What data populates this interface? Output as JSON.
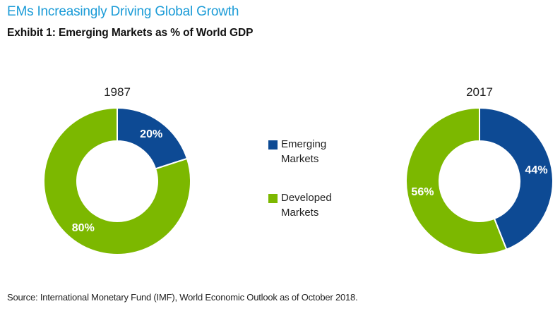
{
  "header": {
    "headline": "EMs Increasingly Driving Global Growth",
    "exhibit_title": "Exhibit 1: Emerging Markets as % of World GDP"
  },
  "colors": {
    "headline": "#1a9bd7",
    "emerging": "#0d4a94",
    "developed": "#7cb800"
  },
  "legend": {
    "items": [
      {
        "label_line1": "Emerging",
        "label_line2": "Markets",
        "color": "#0d4a94"
      },
      {
        "label_line1": "Developed",
        "label_line2": "Markets",
        "color": "#7cb800"
      }
    ]
  },
  "chart_data": [
    {
      "type": "pie",
      "title": "1987",
      "hole": "donut",
      "slices": [
        {
          "name": "Emerging Markets",
          "value": 20,
          "label": "20%",
          "color": "#0d4a94"
        },
        {
          "name": "Developed Markets",
          "value": 80,
          "label": "80%",
          "color": "#7cb800"
        }
      ]
    },
    {
      "type": "pie",
      "title": "2017",
      "hole": "donut",
      "slices": [
        {
          "name": "Emerging Markets",
          "value": 44,
          "label": "44%",
          "color": "#0d4a94"
        },
        {
          "name": "Developed Markets",
          "value": 56,
          "label": "56%",
          "color": "#7cb800"
        }
      ]
    }
  ],
  "footer": {
    "source": "Source: International Monetary Fund (IMF), World Economic Outlook as of October 2018."
  }
}
